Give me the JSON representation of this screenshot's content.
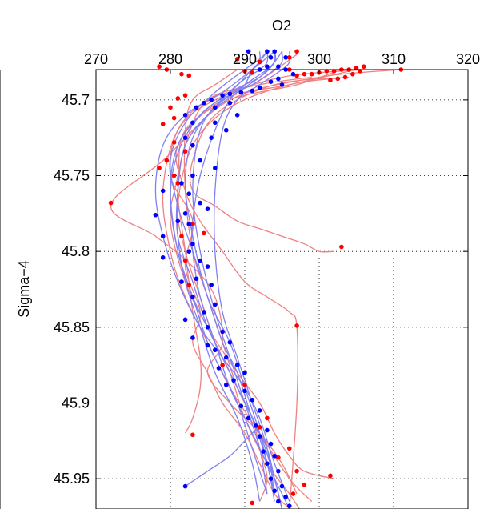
{
  "chart_data": {
    "type": "line",
    "title": "",
    "xlabel": "O2",
    "ylabel": "Sigma−4",
    "xlim": [
      270,
      320
    ],
    "ylim": [
      45.68,
      45.97
    ],
    "y_reversed": true,
    "x_axis_position": "top",
    "grid": true,
    "xticks": [
      270,
      280,
      290,
      300,
      310,
      320
    ],
    "xtick_labels": [
      "270",
      "280",
      "290",
      "300",
      "310",
      "320"
    ],
    "yticks": [
      45.7,
      45.75,
      45.8,
      45.85,
      45.9,
      45.95
    ],
    "ytick_labels": [
      "45.7",
      "45.75",
      "45.8",
      "45.85",
      "45.9",
      "45.95"
    ],
    "colors": {
      "red_line": "#f08080",
      "blue_line": "#8080f0",
      "red_point": "#ff0000",
      "blue_point": "#0000ff"
    },
    "red_series": [
      {
        "x": [
          297,
          291,
          285,
          281,
          280,
          283,
          282,
          284,
          283,
          285,
          287,
          290,
          292,
          294,
          296,
          297
        ],
        "y": [
          45.67,
          45.69,
          45.7,
          45.72,
          45.75,
          45.78,
          45.81,
          45.84,
          45.86,
          45.88,
          45.9,
          45.92,
          45.94,
          45.96,
          45.97,
          45.98
        ]
      },
      {
        "x": [
          311,
          300,
          288,
          279,
          272,
          278,
          283,
          286,
          287,
          285,
          288,
          292,
          295,
          297
        ],
        "y": [
          45.68,
          45.685,
          45.7,
          45.74,
          45.77,
          45.79,
          45.81,
          45.83,
          45.86,
          45.88,
          45.9,
          45.92,
          45.94,
          45.96
        ]
      },
      {
        "x": [
          305,
          296,
          287,
          281,
          282,
          284,
          287,
          290,
          293,
          296,
          297,
          297,
          296
        ],
        "y": [
          45.68,
          45.69,
          45.7,
          45.73,
          45.76,
          45.78,
          45.8,
          45.82,
          45.83,
          45.84,
          45.85,
          45.9,
          45.97
        ]
      },
      {
        "x": [
          304,
          294,
          286,
          283,
          283,
          286,
          289,
          292,
          295,
          298,
          300,
          302
        ],
        "y": [
          45.685,
          45.69,
          45.71,
          45.74,
          45.76,
          45.77,
          45.78,
          45.785,
          45.79,
          45.795,
          45.8,
          45.8
        ]
      },
      {
        "x": [
          303,
          297,
          288,
          282,
          281,
          280,
          282,
          285,
          289,
          292,
          294,
          296,
          298,
          302
        ],
        "y": [
          45.68,
          45.69,
          45.7,
          45.72,
          45.75,
          45.78,
          45.82,
          45.85,
          45.88,
          45.9,
          45.92,
          45.935,
          45.945,
          45.95
        ]
      },
      {
        "x": [
          299,
          292,
          285,
          282,
          281,
          282,
          283,
          284,
          284,
          283,
          282
        ],
        "y": [
          45.685,
          45.69,
          45.7,
          45.73,
          45.76,
          45.8,
          45.84,
          45.87,
          45.89,
          45.91,
          45.92
        ]
      },
      {
        "x": [
          306,
          295,
          286,
          281,
          279,
          280,
          282,
          285,
          288,
          292,
          296,
          299
        ],
        "y": [
          45.68,
          45.685,
          45.7,
          45.72,
          45.76,
          45.8,
          45.83,
          45.86,
          45.89,
          45.92,
          45.95,
          45.965
        ]
      },
      {
        "x": [
          289,
          286,
          283,
          282,
          282,
          283,
          285,
          287,
          289,
          291,
          292,
          293,
          292
        ],
        "y": [
          45.68,
          45.69,
          45.7,
          45.72,
          45.76,
          45.8,
          45.83,
          45.86,
          45.89,
          45.91,
          45.93,
          45.95,
          45.965
        ]
      },
      {
        "x": [
          304,
          296,
          288,
          283,
          281,
          282,
          284,
          286,
          288,
          290,
          293,
          296,
          298
        ],
        "y": [
          45.685,
          45.69,
          45.705,
          45.73,
          45.77,
          45.8,
          45.83,
          45.86,
          45.88,
          45.91,
          45.94,
          45.96,
          45.975
        ]
      }
    ],
    "red_points": [
      [
        297,
        45.668
      ],
      [
        296,
        45.672
      ],
      [
        289,
        45.673
      ],
      [
        292,
        45.675
      ],
      [
        306,
        45.678
      ],
      [
        305,
        45.679
      ],
      [
        304,
        45.68
      ],
      [
        303,
        45.68
      ],
      [
        302,
        45.681
      ],
      [
        301,
        45.681
      ],
      [
        300,
        45.682
      ],
      [
        299,
        45.683
      ],
      [
        298,
        45.683
      ],
      [
        311,
        45.68
      ],
      [
        304.5,
        45.683
      ],
      [
        303.5,
        45.685
      ],
      [
        302.5,
        45.686
      ],
      [
        301.5,
        45.687
      ],
      [
        305.5,
        45.681
      ],
      [
        290,
        45.681
      ],
      [
        291,
        45.682
      ],
      [
        296,
        45.68
      ],
      [
        297,
        45.684
      ],
      [
        281.5,
        45.683
      ],
      [
        282.5,
        45.684
      ],
      [
        279.5,
        45.68
      ],
      [
        278.5,
        45.678
      ],
      [
        281,
        45.699
      ],
      [
        282,
        45.697
      ],
      [
        280,
        45.705
      ],
      [
        280.5,
        45.712
      ],
      [
        279,
        45.716
      ],
      [
        280.5,
        45.728
      ],
      [
        279.5,
        45.74
      ],
      [
        278.5,
        45.745
      ],
      [
        280.5,
        45.75
      ],
      [
        282,
        45.734
      ],
      [
        281,
        45.755
      ],
      [
        272,
        45.768
      ],
      [
        283,
        45.782
      ],
      [
        284.5,
        45.788
      ],
      [
        281.5,
        45.79
      ],
      [
        282,
        45.806
      ],
      [
        281.5,
        45.82
      ],
      [
        282.5,
        45.822
      ],
      [
        303,
        45.797
      ],
      [
        297,
        45.849
      ],
      [
        287,
        45.875
      ],
      [
        290,
        45.888
      ],
      [
        293,
        45.91
      ],
      [
        292,
        45.916
      ],
      [
        283,
        45.921
      ],
      [
        296,
        45.93
      ],
      [
        294.5,
        45.936
      ],
      [
        297,
        45.945
      ],
      [
        298,
        45.954
      ],
      [
        301.5,
        45.948
      ],
      [
        296.5,
        45.96
      ],
      [
        291,
        45.966
      ],
      [
        296,
        45.975
      ],
      [
        297.5,
        45.977
      ]
    ],
    "blue_series": [
      {
        "x": [
          293,
          292,
          291,
          290,
          288,
          286,
          284,
          283,
          283,
          284,
          286,
          288,
          290,
          293,
          296
        ],
        "y": [
          45.668,
          45.675,
          45.68,
          45.69,
          45.7,
          45.72,
          45.75,
          45.78,
          45.8,
          45.83,
          45.86,
          45.89,
          45.91,
          45.94,
          45.97
        ]
      },
      {
        "x": [
          294,
          294,
          292,
          288,
          284,
          281,
          280,
          281,
          283,
          286,
          289,
          292,
          294,
          295
        ],
        "y": [
          45.668,
          45.675,
          45.685,
          45.695,
          45.71,
          45.73,
          45.76,
          45.8,
          45.83,
          45.86,
          45.89,
          45.92,
          45.95,
          45.97
        ]
      },
      {
        "x": [
          293,
          293,
          292,
          289,
          285,
          282,
          281,
          281,
          283,
          285,
          288,
          291,
          293,
          294
        ],
        "y": [
          45.668,
          45.675,
          45.68,
          45.69,
          45.71,
          45.73,
          45.76,
          45.79,
          45.82,
          45.85,
          45.88,
          45.91,
          45.94,
          45.965
        ]
      },
      {
        "x": [
          295,
          295,
          294,
          291,
          287,
          284,
          283,
          284,
          286,
          288,
          290,
          292,
          293
        ],
        "y": [
          45.668,
          45.675,
          45.68,
          45.69,
          45.7,
          45.72,
          45.76,
          45.8,
          45.84,
          45.87,
          45.9,
          45.93,
          45.96
        ]
      },
      {
        "x": [
          296,
          296,
          295,
          292,
          289,
          287,
          286,
          286,
          287,
          289,
          291,
          293,
          294
        ],
        "y": [
          45.668,
          45.675,
          45.68,
          45.69,
          45.7,
          45.72,
          45.76,
          45.8,
          45.84,
          45.87,
          45.9,
          45.93,
          45.96
        ]
      },
      {
        "x": [
          294,
          293,
          291,
          287,
          282,
          279,
          278,
          279,
          281,
          284,
          287,
          290,
          292,
          294,
          296
        ],
        "y": [
          45.668,
          45.672,
          45.68,
          45.695,
          45.71,
          45.73,
          45.76,
          45.79,
          45.82,
          45.85,
          45.87,
          45.89,
          45.91,
          45.94,
          45.965
        ]
      },
      {
        "x": [
          292,
          292,
          291,
          288,
          284,
          281,
          280,
          281,
          283,
          285,
          287,
          289,
          291,
          293
        ],
        "y": [
          45.668,
          45.675,
          45.68,
          45.695,
          45.71,
          45.735,
          45.765,
          45.8,
          45.83,
          45.86,
          45.88,
          45.9,
          45.93,
          45.96
        ]
      },
      {
        "x": [
          293,
          292,
          290,
          286,
          282,
          280,
          281,
          283,
          285,
          287,
          289,
          291,
          293,
          294,
          295
        ],
        "y": [
          45.668,
          45.673,
          45.68,
          45.695,
          45.715,
          45.74,
          45.77,
          45.8,
          45.83,
          45.86,
          45.88,
          45.91,
          45.93,
          45.95,
          45.97
        ]
      },
      {
        "x": [
          294,
          294,
          293,
          290,
          286,
          283,
          282,
          283,
          285,
          288,
          290,
          292,
          294
        ],
        "y": [
          45.668,
          45.675,
          45.68,
          45.69,
          45.705,
          45.725,
          45.755,
          45.79,
          45.83,
          45.86,
          45.89,
          45.92,
          45.96
        ]
      },
      {
        "x": [
          295,
          294,
          292,
          289,
          285,
          282,
          281,
          281,
          282,
          284,
          286,
          289,
          291,
          292
        ],
        "y": [
          45.668,
          45.675,
          45.685,
          45.695,
          45.71,
          45.73,
          45.76,
          45.79,
          45.82,
          45.85,
          45.88,
          45.91,
          45.94,
          45.965
        ]
      },
      {
        "x": [
          282,
          285,
          288,
          290,
          292
        ],
        "y": [
          45.955,
          45.945,
          45.935,
          45.925,
          45.915
        ]
      }
    ],
    "blue_points": [
      [
        290.5,
        45.668
      ],
      [
        293,
        45.668
      ],
      [
        294,
        45.668
      ],
      [
        293.5,
        45.672
      ],
      [
        295.5,
        45.672
      ],
      [
        293,
        45.678
      ],
      [
        294.5,
        45.678
      ],
      [
        295.5,
        45.68
      ],
      [
        292,
        45.68
      ],
      [
        296.5,
        45.683
      ],
      [
        294.5,
        45.686
      ],
      [
        293.5,
        45.688
      ],
      [
        295,
        45.69
      ],
      [
        292,
        45.692
      ],
      [
        291,
        45.694
      ],
      [
        289.5,
        45.695
      ],
      [
        288,
        45.696
      ],
      [
        287,
        45.697
      ],
      [
        285.5,
        45.7
      ],
      [
        284.5,
        45.702
      ],
      [
        283.5,
        45.705
      ],
      [
        286,
        45.705
      ],
      [
        288,
        45.702
      ],
      [
        289,
        45.71
      ],
      [
        282,
        45.71
      ],
      [
        283,
        45.715
      ],
      [
        286,
        45.715
      ],
      [
        287.5,
        45.72
      ],
      [
        285.5,
        45.725
      ],
      [
        282,
        45.725
      ],
      [
        283,
        45.73
      ],
      [
        284,
        45.74
      ],
      [
        286,
        45.745
      ],
      [
        283,
        45.75
      ],
      [
        281.5,
        45.755
      ],
      [
        279,
        45.76
      ],
      [
        282.5,
        45.762
      ],
      [
        284,
        45.768
      ],
      [
        285,
        45.772
      ],
      [
        282,
        45.775
      ],
      [
        278,
        45.776
      ],
      [
        281,
        45.78
      ],
      [
        282.5,
        45.782
      ],
      [
        279,
        45.79
      ],
      [
        283,
        45.795
      ],
      [
        282.5,
        45.8
      ],
      [
        284,
        45.806
      ],
      [
        279,
        45.804
      ],
      [
        285,
        45.81
      ],
      [
        283.5,
        45.818
      ],
      [
        281.5,
        45.82
      ],
      [
        285.5,
        45.822
      ],
      [
        283,
        45.83
      ],
      [
        286,
        45.835
      ],
      [
        284.5,
        45.84
      ],
      [
        282,
        45.845
      ],
      [
        285,
        45.85
      ],
      [
        287,
        45.853
      ],
      [
        283,
        45.857
      ],
      [
        288,
        45.86
      ],
      [
        286,
        45.865
      ],
      [
        285,
        45.862
      ],
      [
        287.5,
        45.87
      ],
      [
        289,
        45.875
      ],
      [
        286.5,
        45.877
      ],
      [
        290,
        45.88
      ],
      [
        288.5,
        45.885
      ],
      [
        287.5,
        45.888
      ],
      [
        290,
        45.892
      ],
      [
        291,
        45.898
      ],
      [
        289.5,
        45.902
      ],
      [
        292,
        45.905
      ],
      [
        290.5,
        45.91
      ],
      [
        291.5,
        45.915
      ],
      [
        293,
        45.918
      ],
      [
        292,
        45.922
      ],
      [
        293.5,
        45.927
      ],
      [
        292.5,
        45.932
      ],
      [
        294,
        45.935
      ],
      [
        293,
        45.94
      ],
      [
        294.5,
        45.945
      ],
      [
        293.5,
        45.95
      ],
      [
        295,
        45.955
      ],
      [
        294,
        45.958
      ],
      [
        295.5,
        45.962
      ],
      [
        294.5,
        45.965
      ],
      [
        296,
        45.968
      ],
      [
        282,
        45.955
      ]
    ]
  }
}
